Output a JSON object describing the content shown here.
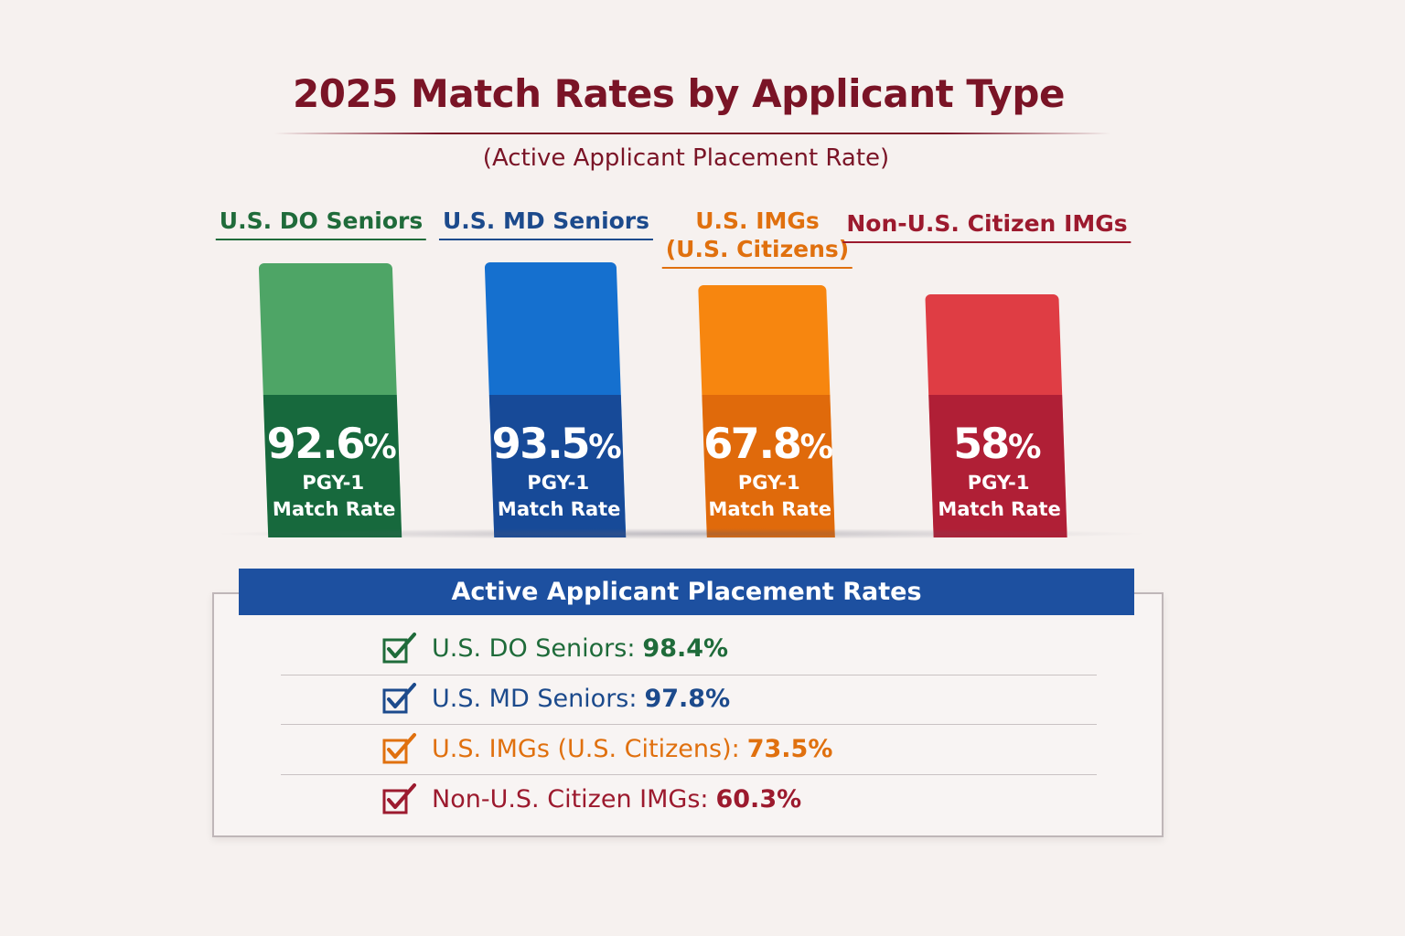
{
  "chart_data": {
    "type": "bar",
    "title": "2025 Match Rates by Applicant Type",
    "subtitle": "(Active Applicant Placement Rate)",
    "categories": [
      {
        "line1": "U.S. DO Seniors",
        "line2": ""
      },
      {
        "line1": "U.S. MD Seniors",
        "line2": ""
      },
      {
        "line1": "U.S. IMGs",
        "line2": "(U.S. Citizens)"
      },
      {
        "line1": "Non-U.S. Citizen IMGs",
        "line2": ""
      }
    ],
    "series": [
      {
        "values": [
          92.6,
          93.5,
          67.8,
          58
        ]
      }
    ],
    "value_labels": [
      {
        "num": "92.6",
        "pct": "%"
      },
      {
        "num": "93.5",
        "pct": "%"
      },
      {
        "num": "67.8",
        "pct": "%"
      },
      {
        "num": "58",
        "pct": "%"
      }
    ],
    "bar_sublabel_line1": "PGY-1",
    "bar_sublabel_line2": "Match Rate",
    "colors": [
      {
        "top": "#4ea566",
        "bottom": "#17693d",
        "text": "#1f6b3a"
      },
      {
        "top": "#1570cf",
        "bottom": "#174a98",
        "text": "#1c4a8c"
      },
      {
        "top": "#f7860f",
        "bottom": "#e06a0b",
        "text": "#e0700e"
      },
      {
        "top": "#df3d44",
        "bottom": "#b01f36",
        "text": "#9c1a2e"
      }
    ]
  },
  "summary": {
    "header": "Active Applicant Placement Rates",
    "rows": [
      {
        "label": "U.S. DO Seniors:",
        "value": "98.4%"
      },
      {
        "label": "U.S. MD Seniors:",
        "value": "97.8%"
      },
      {
        "label": "U.S. IMGs (U.S. Citizens):",
        "value": "73.5%"
      },
      {
        "label": "Non-U.S. Citizen IMGs:",
        "value": "60.3%"
      }
    ],
    "icon": "checkbox-checked-icon"
  }
}
